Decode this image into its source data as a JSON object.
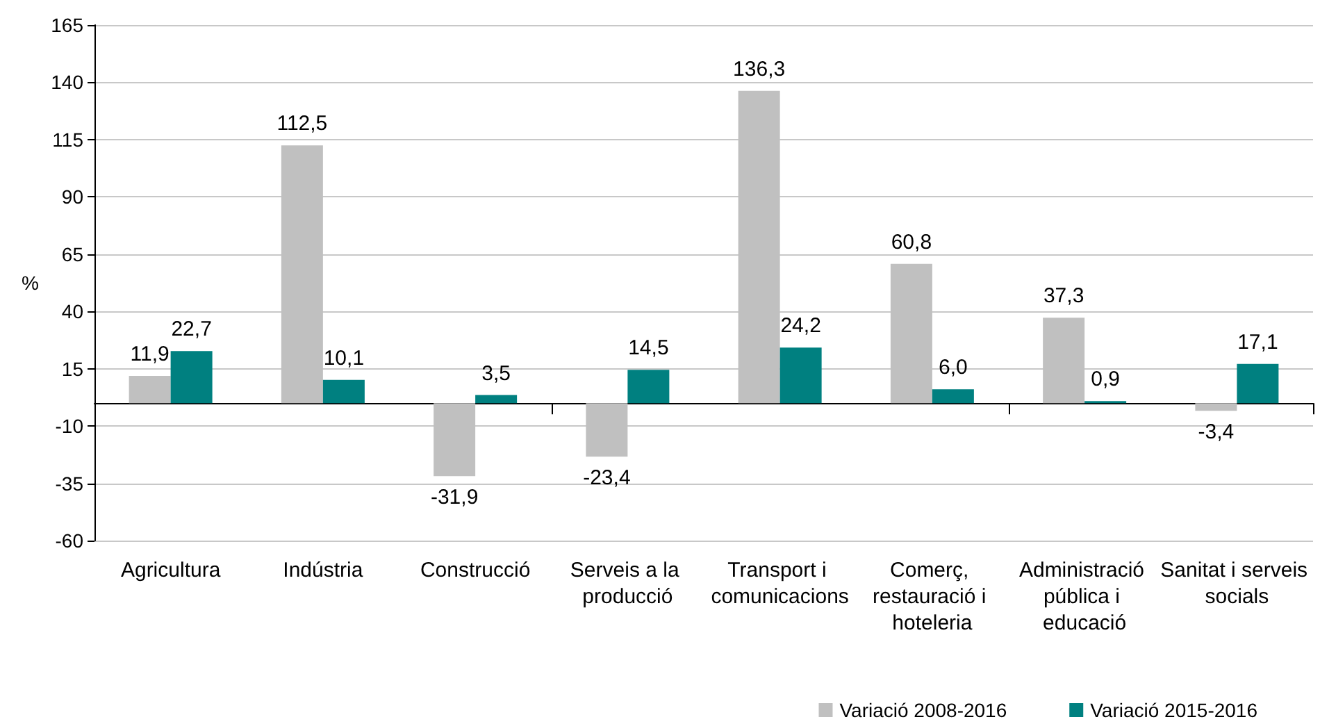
{
  "chart_data": {
    "type": "bar",
    "ylabel": "%",
    "categories": [
      "Agricultura",
      "Indústria",
      "Construcció",
      "Serveis a la producció",
      "Transport i comunicacions",
      "Comerç, restauració i hoteleria",
      "Administració pública i educació",
      "Sanitat i serveis socials"
    ],
    "series": [
      {
        "name": "Variació 2008-2016",
        "color": "#c0c0c0",
        "values": [
          11.9,
          112.5,
          -31.9,
          -23.4,
          136.3,
          60.8,
          37.3,
          -3.4
        ],
        "value_labels": [
          "11,9",
          "112,5",
          "-31,9",
          "-23,4",
          "136,3",
          "60,8",
          "37,3",
          "-3,4"
        ]
      },
      {
        "name": "Variació 2015-2016",
        "color": "#008080",
        "values": [
          22.7,
          10.1,
          3.5,
          14.5,
          24.2,
          6.0,
          0.9,
          17.1
        ],
        "value_labels": [
          "22,7",
          "10,1",
          "3,5",
          "14,5",
          "24,2",
          "6,0",
          "0,9",
          "17,1"
        ]
      }
    ],
    "ylim": [
      -60,
      165
    ],
    "yticks": [
      -60,
      -35,
      -10,
      15,
      40,
      65,
      90,
      115,
      140,
      165
    ],
    "grid": "y",
    "legend": "bottom right"
  }
}
